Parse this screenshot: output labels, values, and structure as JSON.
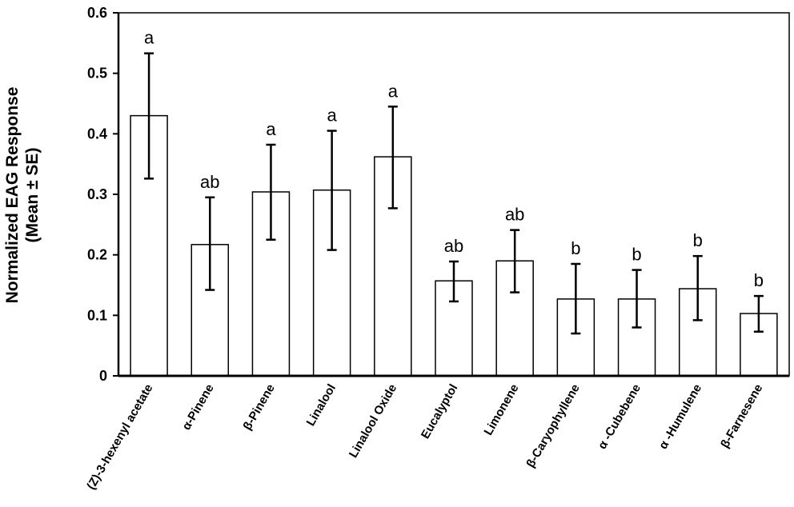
{
  "chart_data": {
    "type": "bar",
    "title": "",
    "xlabel": "",
    "ylabel_lines": [
      "Normalized EAG Response",
      "(Mean ± SE)"
    ],
    "ylim": [
      0,
      0.6
    ],
    "yticks": [
      "0",
      "0.1",
      "0.2",
      "0.3",
      "0.4",
      "0.5",
      "0.6"
    ],
    "grid": false,
    "legend": "none",
    "categories": [
      "(Z)-3-hexenyl acetate",
      "α-Pinene",
      "β-Pinene",
      "Linalool",
      "Linalool Oxide",
      "Eucalyptol",
      "Limonene",
      "β-Caryophyllene",
      "α -Cubebene",
      "α -Humulene",
      "β-Farnesene"
    ],
    "values": [
      0.43,
      0.217,
      0.304,
      0.307,
      0.362,
      0.157,
      0.19,
      0.127,
      0.127,
      0.144,
      0.103
    ],
    "error_upper": [
      0.533,
      0.295,
      0.382,
      0.405,
      0.445,
      0.189,
      0.241,
      0.185,
      0.175,
      0.198,
      0.132
    ],
    "error_lower": [
      0.326,
      0.142,
      0.225,
      0.208,
      0.277,
      0.123,
      0.138,
      0.07,
      0.08,
      0.092,
      0.073
    ],
    "significance": [
      "a",
      "ab",
      "a",
      "a",
      "a",
      "ab",
      "ab",
      "b",
      "b",
      "b",
      "b"
    ],
    "bar_fill": "#ffffff",
    "bar_stroke": "#000000"
  }
}
